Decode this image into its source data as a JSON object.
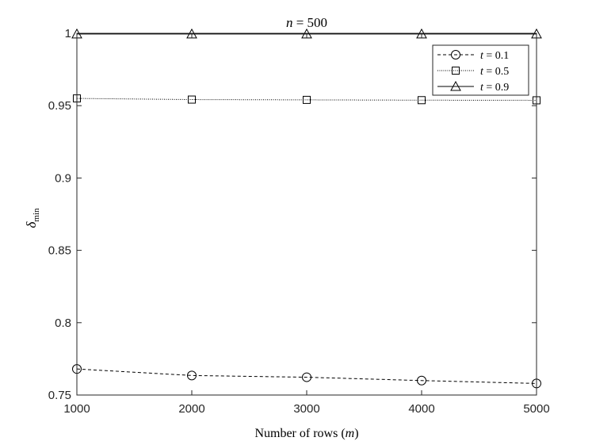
{
  "chart_data": {
    "type": "line",
    "title": "n = 500",
    "title_parts": {
      "var": "n",
      "rest": " = 500"
    },
    "xlabel": "Number of rows (m)",
    "xlabel_parts": {
      "text": "Number of rows (",
      "var": "m",
      "close": ")"
    },
    "ylabel": "δ_min",
    "ylabel_parts": {
      "symbol": "δ",
      "sub": "min"
    },
    "x": [
      1000,
      2000,
      3000,
      4000,
      5000
    ],
    "xlim": [
      1000,
      5000
    ],
    "ylim": [
      0.75,
      1.0
    ],
    "x_ticks": [
      "1000",
      "2000",
      "3000",
      "4000",
      "5000"
    ],
    "y_ticks": [
      {
        "value": 0.75,
        "label": "0.75"
      },
      {
        "value": 0.8,
        "label": "0.8"
      },
      {
        "value": 0.85,
        "label": "0.85"
      },
      {
        "value": 0.9,
        "label": "0.9"
      },
      {
        "value": 0.95,
        "label": "0.95"
      },
      {
        "value": 1.0,
        "label": "1"
      }
    ],
    "grid": false,
    "legend_position": "top-right",
    "series": [
      {
        "name": "t = 0.1",
        "legend_parts": {
          "var": "t",
          "rest": " = 0.1"
        },
        "marker": "circle",
        "line_style": "dashed",
        "color": "#000000",
        "values": [
          0.768,
          0.7635,
          0.7623,
          0.76,
          0.758
        ]
      },
      {
        "name": "t = 0.5",
        "legend_parts": {
          "var": "t",
          "rest": " = 0.5"
        },
        "marker": "square",
        "line_style": "dotted",
        "color": "#000000",
        "values": [
          0.955,
          0.9542,
          0.954,
          0.9538,
          0.9537
        ]
      },
      {
        "name": "t = 0.9",
        "legend_parts": {
          "var": "t",
          "rest": " = 0.9"
        },
        "marker": "triangle",
        "line_style": "solid",
        "color": "#000000",
        "values": [
          0.9995,
          0.9995,
          0.9995,
          0.9995,
          0.9995
        ]
      }
    ]
  }
}
